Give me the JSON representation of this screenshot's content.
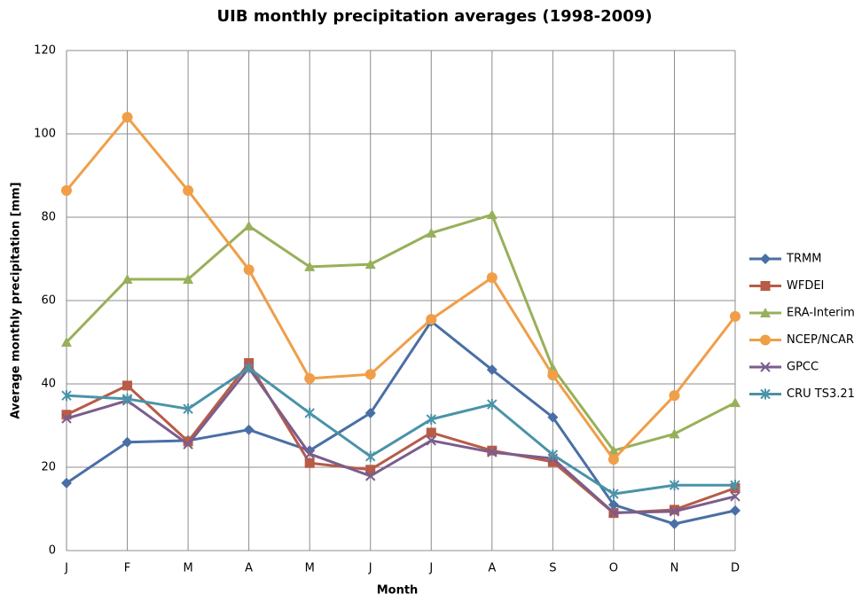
{
  "chart_data": {
    "type": "line",
    "title": "UIB monthly precipitation averages (1998-2009)",
    "x_label": "Month",
    "y_label": "Average monthly precipitation [mm]",
    "categories": [
      "J",
      "F",
      "M",
      "A",
      "M",
      "J",
      "J",
      "A",
      "S",
      "O",
      "N",
      "D"
    ],
    "ylim": [
      0,
      120
    ],
    "yticks": [
      0,
      20,
      40,
      60,
      80,
      100,
      120
    ],
    "grid": true,
    "legend": "right",
    "series": [
      {
        "name": "TRMM",
        "color": "#4a6fa5",
        "marker": "diamond",
        "values": [
          16.2,
          26,
          26.4,
          29,
          24,
          33,
          55,
          43.4,
          32,
          11,
          6.4,
          9.6
        ]
      },
      {
        "name": "WFDEI",
        "color": "#b85b47",
        "marker": "square",
        "values": [
          32.6,
          39.6,
          26.2,
          45,
          21,
          19.4,
          28.3,
          24,
          21.3,
          9,
          9.8,
          15
        ]
      },
      {
        "name": "ERA-Interim",
        "color": "#98b05a",
        "marker": "triangle",
        "values": [
          50,
          65.1,
          65.1,
          77.9,
          68.1,
          68.7,
          76.2,
          80.6,
          43.8,
          24,
          28,
          35.5
        ]
      },
      {
        "name": "NCEP/NCAR",
        "color": "#f09e48",
        "marker": "circle",
        "values": [
          86.4,
          104,
          86.4,
          67.4,
          41.3,
          42.3,
          55.5,
          65.5,
          42.1,
          21.9,
          37.2,
          56.2
        ]
      },
      {
        "name": "GPCC",
        "color": "#7b5d8c",
        "marker": "x",
        "values": [
          31.7,
          36,
          25.5,
          43.8,
          23.2,
          17.9,
          26.4,
          23.6,
          22.1,
          9.1,
          9.4,
          13
        ]
      },
      {
        "name": "CRU TS3.21",
        "color": "#4a93a8",
        "marker": "star",
        "values": [
          37.2,
          36.4,
          34,
          43.8,
          33,
          22.6,
          31.5,
          35.1,
          23,
          13.6,
          15.7,
          15.7
        ]
      }
    ]
  }
}
